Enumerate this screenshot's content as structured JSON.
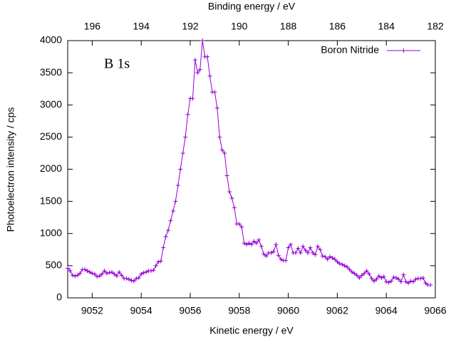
{
  "chart_data": {
    "type": "line",
    "xlabel": "Kinetic energy / eV",
    "ylabel": "Photoelectron intensity / cps",
    "x2label": "Binding energy / eV",
    "annotation": "B 1s",
    "legend": "top right",
    "xlim": [
      9051,
      9066
    ],
    "xticks": [
      9052,
      9054,
      9056,
      9058,
      9060,
      9062,
      9064,
      9066
    ],
    "x2lim": [
      197,
      182
    ],
    "x2ticks": [
      196,
      194,
      192,
      190,
      188,
      186,
      184,
      182
    ],
    "ylim": [
      0,
      4000
    ],
    "yticks": [
      0,
      500,
      1000,
      1500,
      2000,
      2500,
      3000,
      3500,
      4000
    ],
    "series": [
      {
        "name": "Boron Nitride",
        "color": "#9400d3",
        "x": [
          9051.0,
          9051.1,
          9051.2,
          9051.3,
          9051.4,
          9051.5,
          9051.6,
          9051.7,
          9051.8,
          9051.9,
          9052.0,
          9052.1,
          9052.2,
          9052.3,
          9052.4,
          9052.5,
          9052.6,
          9052.7,
          9052.8,
          9052.9,
          9053.0,
          9053.1,
          9053.2,
          9053.3,
          9053.4,
          9053.5,
          9053.6,
          9053.7,
          9053.8,
          9053.9,
          9054.0,
          9054.1,
          9054.2,
          9054.3,
          9054.4,
          9054.5,
          9054.6,
          9054.7,
          9054.8,
          9054.9,
          9055.0,
          9055.1,
          9055.2,
          9055.3,
          9055.4,
          9055.5,
          9055.6,
          9055.7,
          9055.8,
          9055.9,
          9056.0,
          9056.1,
          9056.2,
          9056.3,
          9056.4,
          9056.5,
          9056.6,
          9056.7,
          9056.8,
          9056.9,
          9057.0,
          9057.1,
          9057.2,
          9057.3,
          9057.4,
          9057.5,
          9057.6,
          9057.7,
          9057.8,
          9057.9,
          9058.0,
          9058.1,
          9058.2,
          9058.3,
          9058.4,
          9058.5,
          9058.6,
          9058.7,
          9058.8,
          9058.9,
          9059.0,
          9059.1,
          9059.2,
          9059.3,
          9059.4,
          9059.5,
          9059.6,
          9059.7,
          9059.8,
          9059.9,
          9060.0,
          9060.1,
          9060.2,
          9060.3,
          9060.4,
          9060.5,
          9060.6,
          9060.7,
          9060.8,
          9060.9,
          9061.0,
          9061.1,
          9061.2,
          9061.3,
          9061.4,
          9061.5,
          9061.6,
          9061.7,
          9061.8,
          9061.9,
          9062.0,
          9062.1,
          9062.2,
          9062.3,
          9062.4,
          9062.5,
          9062.6,
          9062.7,
          9062.8,
          9062.9,
          9063.0,
          9063.1,
          9063.2,
          9063.3,
          9063.4,
          9063.5,
          9063.6,
          9063.7,
          9063.8,
          9063.9,
          9064.0,
          9064.1,
          9064.2,
          9064.3,
          9064.4,
          9064.5,
          9064.6,
          9064.7,
          9064.8,
          9064.9,
          9065.0,
          9065.1,
          9065.2,
          9065.3,
          9065.4,
          9065.5,
          9065.6,
          9065.7,
          9065.8
        ],
        "values": [
          460,
          420,
          350,
          340,
          350,
          380,
          440,
          440,
          420,
          400,
          380,
          370,
          330,
          340,
          370,
          420,
          380,
          390,
          400,
          370,
          340,
          400,
          350,
          300,
          300,
          290,
          270,
          260,
          300,
          310,
          370,
          390,
          400,
          420,
          420,
          430,
          500,
          560,
          570,
          780,
          950,
          1050,
          1200,
          1350,
          1500,
          1750,
          2000,
          2250,
          2500,
          2850,
          3100,
          3100,
          3700,
          3500,
          3550,
          4000,
          3750,
          3750,
          3450,
          3200,
          3200,
          2950,
          2500,
          2300,
          2250,
          1900,
          1650,
          1550,
          1400,
          1150,
          1150,
          1100,
          850,
          830,
          850,
          830,
          880,
          850,
          900,
          800,
          680,
          650,
          700,
          700,
          720,
          830,
          660,
          600,
          580,
          580,
          780,
          830,
          700,
          700,
          770,
          700,
          800,
          740,
          700,
          780,
          700,
          670,
          800,
          750,
          650,
          640,
          600,
          640,
          620,
          600,
          560,
          530,
          520,
          500,
          480,
          440,
          400,
          380,
          350,
          310,
          350,
          380,
          420,
          370,
          300,
          260,
          290,
          340,
          310,
          330,
          250,
          240,
          260,
          320,
          310,
          290,
          250,
          360,
          250,
          230,
          260,
          250,
          290,
          300,
          300,
          310,
          230,
          200,
          200
        ]
      }
    ]
  }
}
